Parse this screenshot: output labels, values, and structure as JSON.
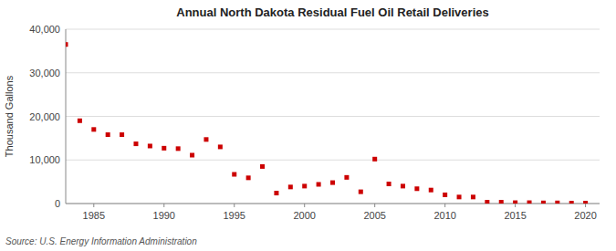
{
  "chart_data": {
    "type": "scatter",
    "title": "Annual North Dakota Residual Fuel Oil Retail Deliveries",
    "y_label": "Thousand Gallons",
    "annotations": [
      "Source: U.S. Energy Information Administration"
    ],
    "x": [
      1983,
      1984,
      1985,
      1986,
      1987,
      1988,
      1989,
      1990,
      1991,
      1992,
      1993,
      1994,
      1995,
      1996,
      1997,
      1998,
      1999,
      2000,
      2001,
      2002,
      2003,
      2004,
      2005,
      2006,
      2007,
      2008,
      2009,
      2010,
      2011,
      2012,
      2013,
      2014,
      2015,
      2016,
      2017,
      2018,
      2019,
      2020
    ],
    "values": [
      36500,
      19000,
      17000,
      15800,
      15800,
      13700,
      13200,
      12700,
      12600,
      11100,
      14700,
      13000,
      6700,
      5900,
      8500,
      2400,
      3800,
      4000,
      4400,
      4800,
      6000,
      2700,
      10200,
      4500,
      4000,
      3400,
      3100,
      2000,
      1500,
      1500,
      300,
      300,
      200,
      200,
      150,
      150,
      100,
      100
    ],
    "color": "#cc0000",
    "marker": "square",
    "xlim": [
      1983,
      2021
    ],
    "xticks": [
      1985,
      1990,
      1995,
      2000,
      2005,
      2010,
      2015,
      2020
    ],
    "ylim": [
      0,
      40000
    ],
    "yticks": [
      0,
      {
        "value": 10000,
        "label": "10,000"
      },
      {
        "value": 20000,
        "label": "20,000"
      },
      {
        "value": 30000,
        "label": "30,000"
      },
      {
        "value": 40000,
        "label": "40,000"
      }
    ],
    "grid": true
  }
}
